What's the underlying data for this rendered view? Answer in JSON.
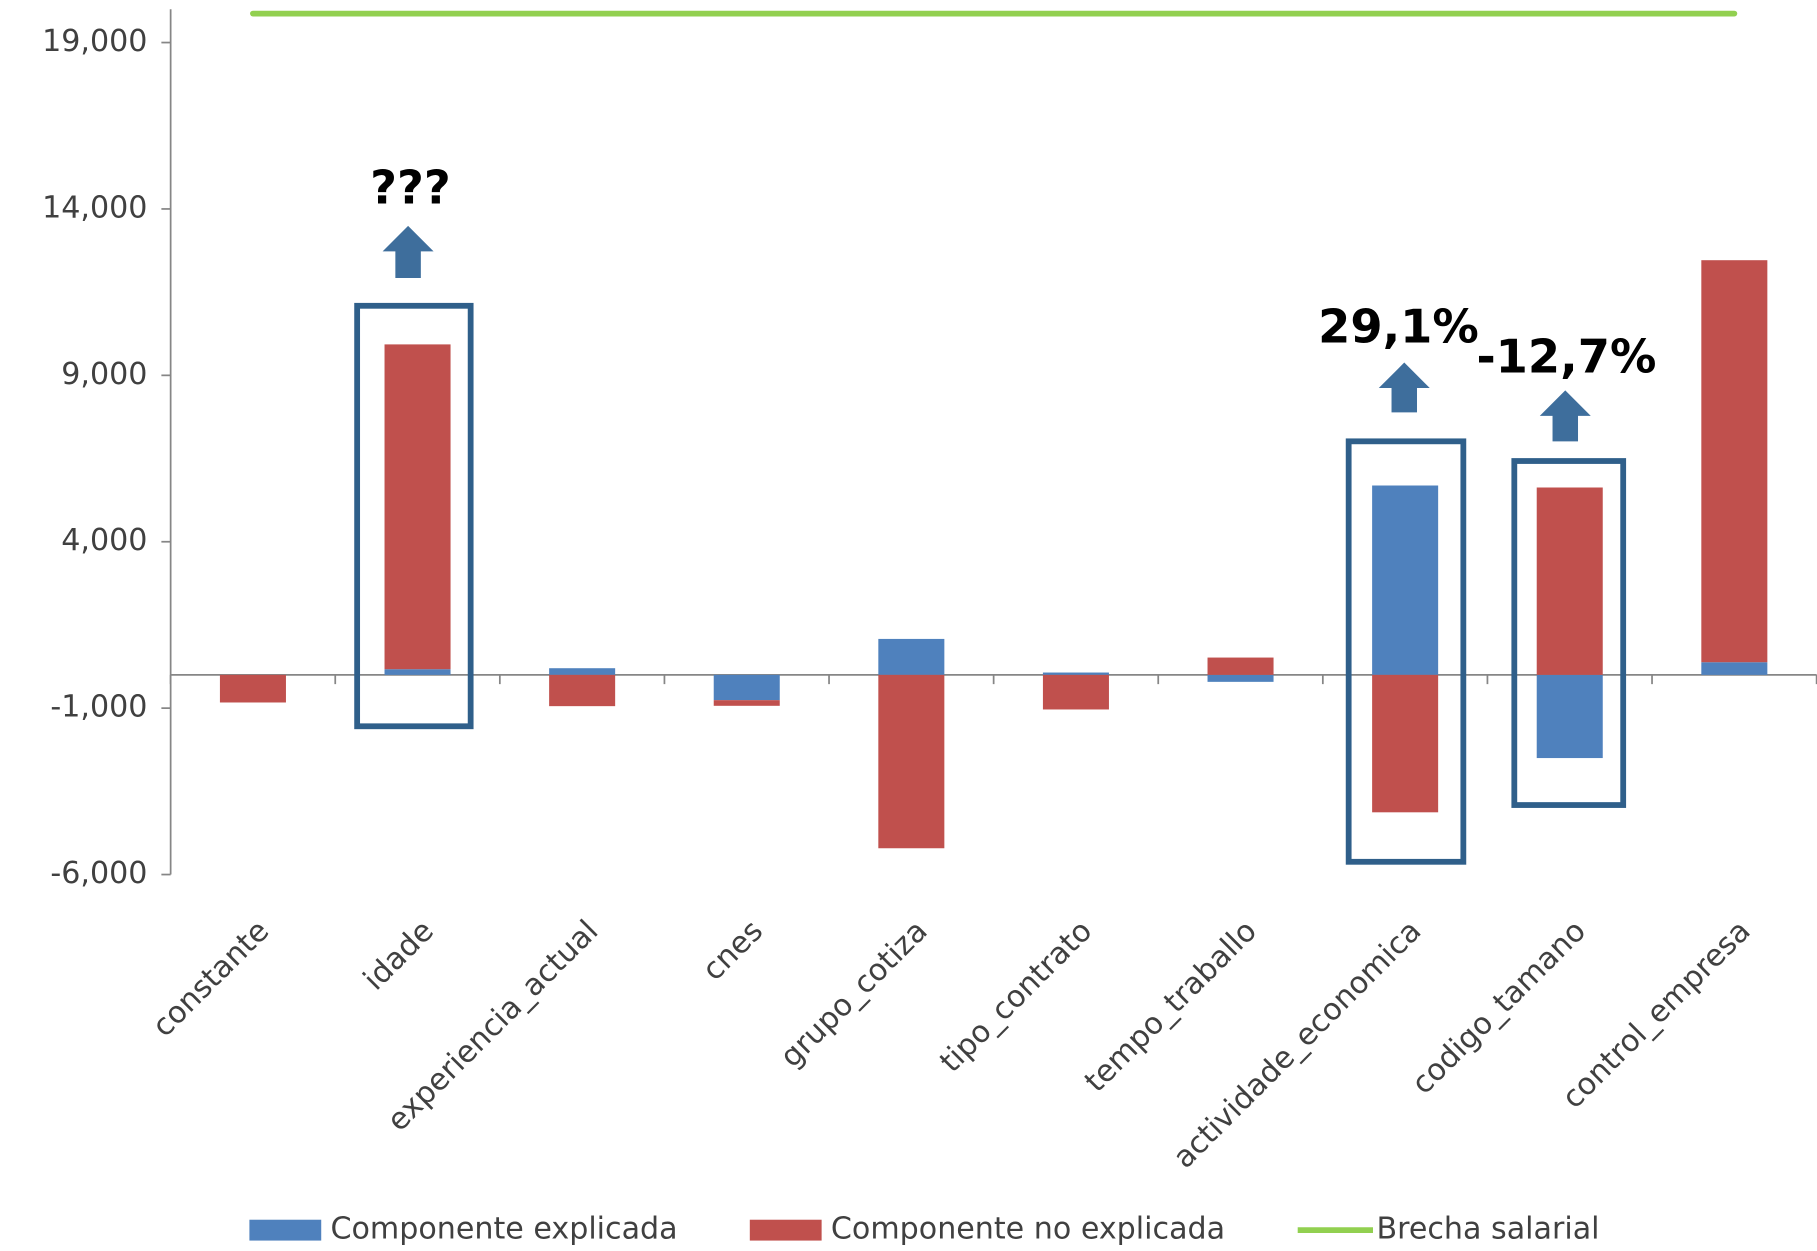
{
  "chart_data": {
    "type": "bar",
    "categories": [
      "constante",
      "idade",
      "experiencia_actual",
      "cnes",
      "grupo_cotiza",
      "tipo_contrato",
      "tempo_traballo",
      "actividade_economica",
      "codigo_tamano",
      "control_empresa"
    ],
    "series": [
      {
        "name": "Componente explicada",
        "color": "#4f81bd",
        "values": [
          0,
          170,
          200,
          -760,
          1080,
          70,
          -210,
          5690,
          -2500,
          380
        ]
      },
      {
        "name": "Componente no explicada",
        "color": "#c0504d",
        "values": [
          -830,
          9760,
          -940,
          -170,
          -5210,
          -1040,
          520,
          -4130,
          5630,
          12080
        ]
      },
      {
        "name": "Brecha salarial",
        "type": "line",
        "color": "#92d050",
        "values": [
          19870,
          19870,
          19870,
          19870,
          19870,
          19870,
          19870,
          19870,
          19870,
          19870
        ]
      }
    ],
    "ylim": [
      -6000,
      20000
    ],
    "yticks": [
      {
        "value": 19000,
        "label": "19,000"
      },
      {
        "value": 14000,
        "label": "14,000"
      },
      {
        "value": 9000,
        "label": "9,000"
      },
      {
        "value": 4000,
        "label": "4,000"
      },
      {
        "value": -1000,
        "label": "-1,000"
      },
      {
        "value": -6000,
        "label": "-6,000"
      }
    ],
    "stacked": true,
    "grid": false,
    "legend": "bottom",
    "annotations": [
      "???",
      "29,1%",
      "-12,7%"
    ]
  }
}
